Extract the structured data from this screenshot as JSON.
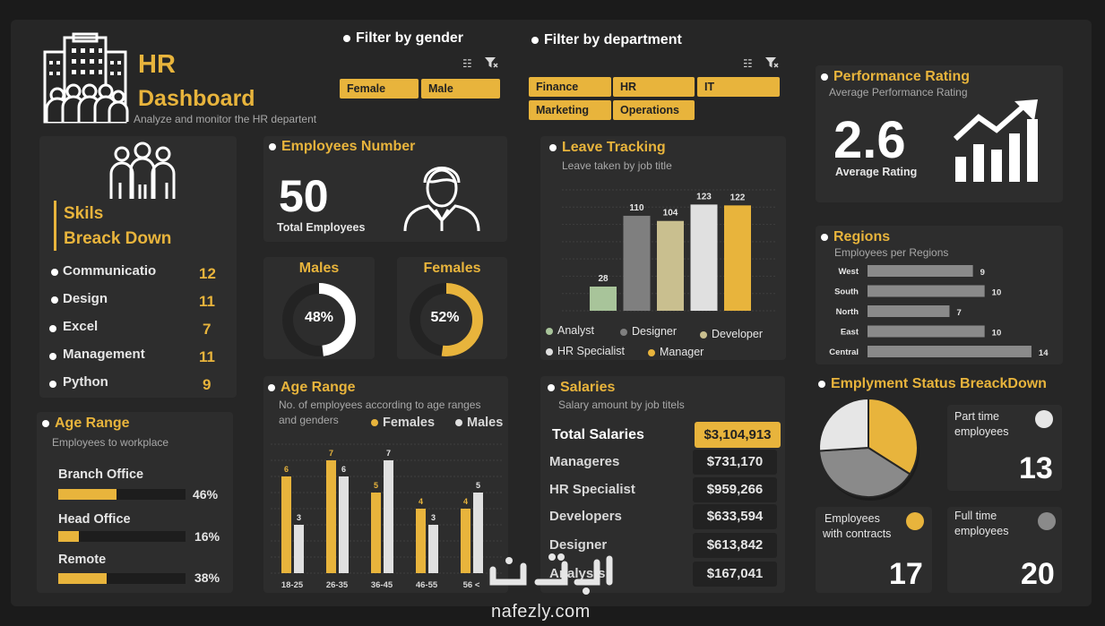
{
  "header": {
    "title_line1": "HR",
    "title_line2": "Dashboard",
    "subtitle": "Analyze and monitor the HR departent"
  },
  "filters": {
    "gender": {
      "title": "Filter by gender",
      "options": [
        "Female",
        "Male"
      ]
    },
    "department": {
      "title": "Filter by department",
      "options": [
        "Finance",
        "HR",
        "IT",
        "Marketing",
        "Operations"
      ]
    }
  },
  "skills": {
    "title_line1": "Skils",
    "title_line2": "Breack Down",
    "items": [
      {
        "label": "Communicatio",
        "value": "12"
      },
      {
        "label": "Design",
        "value": "11"
      },
      {
        "label": "Excel",
        "value": "7"
      },
      {
        "label": "Management",
        "value": "11"
      },
      {
        "label": "Python",
        "value": "9"
      }
    ]
  },
  "workplace": {
    "title": "Age Range",
    "subtitle": "Employees to workplace",
    "items": [
      {
        "label": "Branch Office",
        "pct_label": "46%",
        "pct": 46
      },
      {
        "label": "Head Office",
        "pct_label": "16%",
        "pct": 16
      },
      {
        "label": "Remote",
        "pct_label": "38%",
        "pct": 38
      }
    ]
  },
  "employees": {
    "title": "Employees Number",
    "value": "50",
    "label": "Total Employees"
  },
  "gender_split": {
    "males": {
      "title": "Males",
      "pct_label": "48%",
      "pct": 48,
      "color": "#ffffff"
    },
    "females": {
      "title": "Females",
      "pct_label": "52%",
      "pct": 52,
      "color": "#e8b43c"
    }
  },
  "salaries": {
    "title": "Salaries",
    "subtitle": "Salary amount by job titels",
    "total_label": "Total Salaries",
    "total_value": "$3,104,913",
    "rows": [
      {
        "label": "Manageres",
        "value": "$731,170"
      },
      {
        "label": "HR Specialist",
        "value": "$959,266"
      },
      {
        "label": "Developers",
        "value": "$633,594"
      },
      {
        "label": "Designer",
        "value": "$613,842"
      },
      {
        "label": "Analysts",
        "value": "$167,041"
      }
    ]
  },
  "performance": {
    "title": "Performance Rating",
    "subtitle": "Average Performance Rating",
    "value": "2.6",
    "label": "Average Rating"
  },
  "employment_status": {
    "title": "Emplyment Status BreackDown",
    "part_time": {
      "label_line1": "Part time",
      "label_line2": "employees",
      "value": "13",
      "color": "#e6e6e6"
    },
    "contracts": {
      "label_line1": "Employees",
      "label_line2": "with contracts",
      "value": "17",
      "color": "#e8b43c"
    },
    "full_time": {
      "label_line1": "Full time",
      "label_line2": "employees",
      "value": "20",
      "color": "#8a8a8a"
    }
  },
  "watermark": {
    "text": "nafezly.com"
  },
  "chart_data": [
    {
      "id": "leave",
      "type": "bar",
      "title": "Leave Tracking",
      "subtitle": "Leave taken by job title",
      "categories": [
        "Analyst",
        "Designer",
        "Developer",
        "HR Specialist",
        "Manager"
      ],
      "values": [
        28,
        110,
        104,
        123,
        122
      ],
      "colors": [
        "#a8c49a",
        "#7f7f7f",
        "#c9bf8f",
        "#e0e0e0",
        "#e8b43c"
      ],
      "ylim": [
        0,
        140
      ],
      "grid": true,
      "legend": "bottom"
    },
    {
      "id": "age",
      "type": "bar",
      "title": "Age Range",
      "subtitle_line1": "No. of employees according to age ranges",
      "subtitle_line2": "and genders",
      "categories": [
        "18-25",
        "26-35",
        "36-45",
        "46-55",
        "56 <"
      ],
      "series": [
        {
          "name": "Females",
          "values": [
            6,
            7,
            5,
            4,
            4
          ],
          "color": "#e8b43c"
        },
        {
          "name": "Males",
          "values": [
            3,
            6,
            7,
            3,
            5
          ],
          "color": "#e0e0e0"
        }
      ],
      "ylim": [
        0,
        8
      ],
      "grid": true,
      "legend": "top-right"
    },
    {
      "id": "regions",
      "type": "bar",
      "orientation": "horizontal",
      "title": "Regions",
      "subtitle": "Employees per Regions",
      "categories": [
        "West",
        "South",
        "North",
        "East",
        "Central"
      ],
      "values": [
        9,
        10,
        7,
        10,
        14
      ],
      "color": "#8a8a8a",
      "xlim": [
        0,
        15
      ]
    },
    {
      "id": "status",
      "type": "pie",
      "labels": [
        "Part time employees",
        "Employees with contracts",
        "Full time employees"
      ],
      "values": [
        13,
        17,
        20
      ],
      "colors": [
        "#e6e6e6",
        "#e8b43c",
        "#8a8a8a"
      ]
    }
  ]
}
